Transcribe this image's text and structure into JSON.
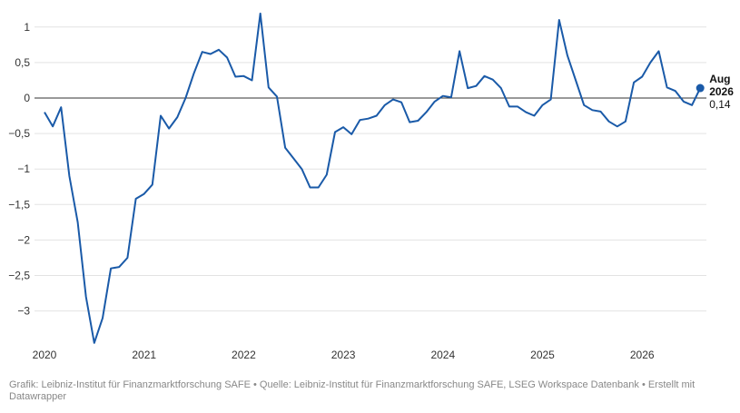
{
  "chart_data": {
    "type": "line",
    "title": "",
    "xlabel": "",
    "ylabel": "",
    "x_tick_labels": [
      "2020",
      "2021",
      "2022",
      "2023",
      "2024",
      "2025",
      "2026"
    ],
    "y_ticks": [
      1,
      0.5,
      0,
      -0.5,
      -1,
      -1.5,
      -2,
      -2.5,
      -3
    ],
    "y_tick_labels": [
      "1",
      "0,5",
      "0",
      "−0,5",
      "−1",
      "−1,5",
      "−2",
      "−2,5",
      "−3"
    ],
    "ylim": [
      -3.45,
      1.2
    ],
    "grid": true,
    "zero_line": true,
    "line_color": "#1a5aa8",
    "series": [
      {
        "x": [
          "2020-01",
          "2020-02",
          "2020-03",
          "2020-04",
          "2020-05",
          "2020-06",
          "2020-07",
          "2020-08",
          "2020-09",
          "2020-10",
          "2020-11",
          "2020-12",
          "2021-01",
          "2021-02",
          "2021-03",
          "2021-04",
          "2021-05",
          "2021-06",
          "2021-07",
          "2021-08",
          "2021-09",
          "2021-10",
          "2021-11",
          "2021-12",
          "2022-01",
          "2022-02",
          "2022-03",
          "2022-04",
          "2022-05",
          "2022-06",
          "2022-07",
          "2022-08",
          "2022-09",
          "2022-10",
          "2022-11",
          "2022-12",
          "2023-01",
          "2023-02",
          "2023-03",
          "2023-04",
          "2023-05",
          "2023-06",
          "2023-07",
          "2023-08",
          "2023-09",
          "2023-10",
          "2023-11",
          "2023-12",
          "2024-01",
          "2024-02",
          "2024-03",
          "2024-04",
          "2024-05",
          "2024-06",
          "2024-07",
          "2024-08",
          "2024-09",
          "2024-10",
          "2024-11",
          "2024-12",
          "2025-01",
          "2025-02",
          "2025-03",
          "2025-04",
          "2025-05",
          "2025-06",
          "2025-07",
          "2025-08",
          "2025-09",
          "2025-10",
          "2025-11",
          "2025-12",
          "2026-01",
          "2026-02",
          "2026-03",
          "2026-04",
          "2026-05",
          "2026-06",
          "2026-07",
          "2026-08"
        ],
        "values": [
          -0.2,
          -0.4,
          -0.13,
          -1.1,
          -1.75,
          -2.8,
          -3.45,
          -3.1,
          -2.4,
          -2.38,
          -2.25,
          -1.42,
          -1.35,
          -1.22,
          -0.25,
          -0.43,
          -0.27,
          0.0,
          0.35,
          0.65,
          0.62,
          0.68,
          0.57,
          0.3,
          0.31,
          0.25,
          1.19,
          0.15,
          0.02,
          -0.7,
          -0.85,
          -1.0,
          -1.26,
          -1.26,
          -1.08,
          -0.48,
          -0.41,
          -0.51,
          -0.31,
          -0.29,
          -0.25,
          -0.1,
          -0.02,
          -0.06,
          -0.34,
          -0.32,
          -0.2,
          -0.05,
          0.03,
          0.01,
          0.66,
          0.14,
          0.17,
          0.31,
          0.26,
          0.14,
          -0.12,
          -0.12,
          -0.2,
          -0.25,
          -0.1,
          -0.02,
          1.1,
          0.6,
          0.25,
          -0.1,
          -0.17,
          -0.19,
          -0.33,
          -0.4,
          -0.33,
          0.22,
          0.3,
          0.5,
          0.66,
          0.15,
          0.1,
          -0.05,
          -0.1,
          0.14
        ]
      }
    ],
    "last_point_label": {
      "month": "Aug",
      "year": "2026",
      "value": "0,14"
    }
  },
  "footer": {
    "text": "Grafik: Leibniz-Institut für Finanzmarktforschung SAFE • Quelle: Leibniz-Institut für Finanzmarktforschung SAFE, LSEG Workspace Datenbank • Erstellt mit Datawrapper"
  }
}
